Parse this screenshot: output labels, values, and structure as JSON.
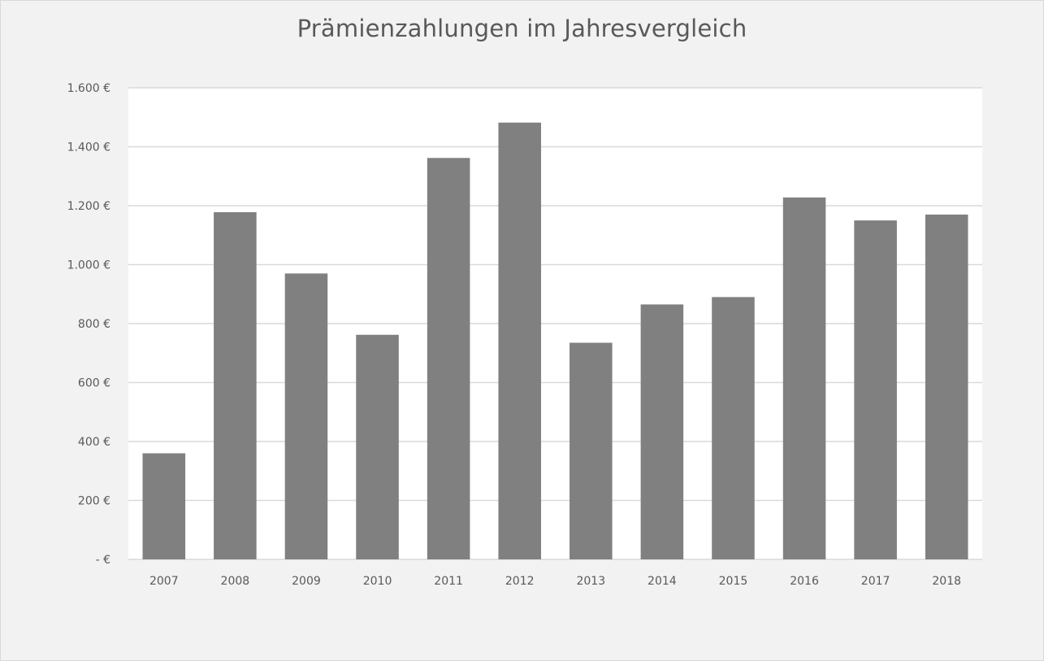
{
  "chart_data": {
    "type": "bar",
    "title": "Prämienzahlungen im Jahresvergleich",
    "xlabel": "",
    "ylabel": "",
    "categories": [
      "2007",
      "2008",
      "2009",
      "2010",
      "2011",
      "2012",
      "2013",
      "2014",
      "2015",
      "2016",
      "2017",
      "2018"
    ],
    "values": [
      360,
      1178,
      970,
      762,
      1362,
      1482,
      735,
      865,
      890,
      1228,
      1150,
      1170
    ],
    "ylim": [
      0,
      1600
    ],
    "ytick_values": [
      0,
      200,
      400,
      600,
      800,
      1000,
      1200,
      1400,
      1600
    ],
    "ytick_labels": [
      "- €",
      "200 €",
      "400 €",
      "600 €",
      "800 €",
      "1.000 €",
      "1.200 €",
      "1.400 €",
      "1.600 €"
    ],
    "grid": true,
    "legend": "none",
    "colors": {
      "bar": "#808080",
      "gridline": "#d9d9d9",
      "plot_background": "#ffffff",
      "chart_background": "#f2f2f2",
      "text": "#595959"
    }
  }
}
